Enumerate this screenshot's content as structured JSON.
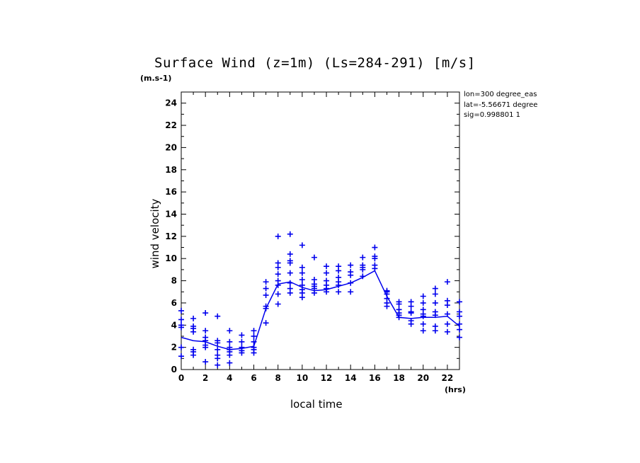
{
  "chart_data": {
    "type": "scatter",
    "title": "Surface Wind (z=1m) (Ls=284-291) [m/s]",
    "ylabel": "wind velocity",
    "xlabel": "local time",
    "y_unit": "(m.s-1)",
    "x_unit": "(hrs)",
    "xlim": [
      0,
      23
    ],
    "ylim": [
      0,
      25
    ],
    "x_ticks": [
      0,
      2,
      4,
      6,
      8,
      10,
      12,
      14,
      16,
      18,
      20,
      22
    ],
    "y_ticks": [
      0,
      2,
      4,
      6,
      8,
      10,
      12,
      14,
      16,
      18,
      20,
      22,
      24
    ],
    "info_lines": [
      "lon=300 degree_eas",
      "lat=-5.56671 degree",
      "sig=0.998801 1"
    ],
    "color": "#0000ee",
    "mean_line": {
      "x": [
        0,
        1,
        2,
        3,
        4,
        5,
        6,
        7,
        8,
        9,
        10,
        11,
        12,
        13,
        14,
        15,
        16,
        17,
        18,
        19,
        20,
        21,
        22,
        23
      ],
      "y": [
        2.9,
        2.6,
        2.5,
        2.1,
        1.8,
        1.9,
        2.1,
        5.5,
        7.7,
        7.9,
        7.4,
        7.1,
        7.2,
        7.5,
        7.8,
        8.3,
        8.9,
        6.6,
        4.7,
        4.6,
        4.7,
        4.7,
        4.8,
        3.9
      ]
    },
    "scatter_points": [
      {
        "x": 0,
        "y": [
          5.3,
          4.5,
          4.0,
          3.8,
          2.0,
          1.2
        ]
      },
      {
        "x": 1,
        "y": [
          4.6,
          3.9,
          3.7,
          3.4,
          1.8,
          1.6,
          1.3
        ]
      },
      {
        "x": 2,
        "y": [
          5.1,
          3.5,
          2.9,
          2.6,
          2.2,
          2.0,
          0.7
        ]
      },
      {
        "x": 3,
        "y": [
          4.8,
          2.6,
          2.4,
          1.8,
          1.3,
          1.0,
          0.4
        ]
      },
      {
        "x": 4,
        "y": [
          3.5,
          2.5,
          2.0,
          1.8,
          1.6,
          1.3,
          0.6
        ]
      },
      {
        "x": 5,
        "y": [
          3.1,
          2.5,
          2.0,
          1.7,
          1.5
        ]
      },
      {
        "x": 6,
        "y": [
          3.5,
          3.0,
          2.5,
          2.0,
          1.8,
          1.5
        ]
      },
      {
        "x": 7,
        "y": [
          7.9,
          7.3,
          6.7,
          5.7,
          5.5,
          4.2
        ]
      },
      {
        "x": 8,
        "y": [
          12.0,
          9.6,
          9.2,
          8.6,
          8.0,
          7.6,
          6.8,
          5.9
        ]
      },
      {
        "x": 9,
        "y": [
          12.2,
          10.4,
          9.8,
          9.6,
          8.7,
          7.8,
          7.3,
          6.9
        ]
      },
      {
        "x": 10,
        "y": [
          11.2,
          9.2,
          8.7,
          8.1,
          7.6,
          7.2,
          6.9,
          6.5
        ]
      },
      {
        "x": 11,
        "y": [
          10.1,
          8.1,
          7.7,
          7.5,
          7.3,
          6.9
        ]
      },
      {
        "x": 12,
        "y": [
          9.3,
          8.7,
          8.0,
          7.6,
          7.3,
          7.0
        ]
      },
      {
        "x": 13,
        "y": [
          9.3,
          8.9,
          8.3,
          7.9,
          7.6,
          7.0
        ]
      },
      {
        "x": 14,
        "y": [
          9.4,
          8.8,
          8.5,
          7.8,
          7.0
        ]
      },
      {
        "x": 15,
        "y": [
          10.1,
          9.4,
          9.2,
          9.0,
          8.4
        ]
      },
      {
        "x": 16,
        "y": [
          11.0,
          10.2,
          10.0,
          9.4,
          9.1
        ]
      },
      {
        "x": 17,
        "y": [
          7.1,
          7.0,
          6.8,
          6.4,
          6.0,
          5.7
        ]
      },
      {
        "x": 18,
        "y": [
          6.1,
          5.9,
          5.4,
          5.1,
          4.9,
          4.7
        ]
      },
      {
        "x": 19,
        "y": [
          6.1,
          5.7,
          5.2,
          5.1,
          4.4,
          4.1
        ]
      },
      {
        "x": 20,
        "y": [
          6.6,
          6.0,
          5.4,
          5.0,
          4.8,
          4.1,
          3.5
        ]
      },
      {
        "x": 21,
        "y": [
          7.3,
          6.8,
          6.0,
          5.2,
          4.9,
          3.9,
          3.5
        ]
      },
      {
        "x": 22,
        "y": [
          7.9,
          6.2,
          5.8,
          5.0,
          4.1,
          3.4
        ]
      },
      {
        "x": 23,
        "y": [
          6.1,
          5.2,
          4.8,
          4.1,
          3.6,
          2.9
        ]
      }
    ]
  }
}
